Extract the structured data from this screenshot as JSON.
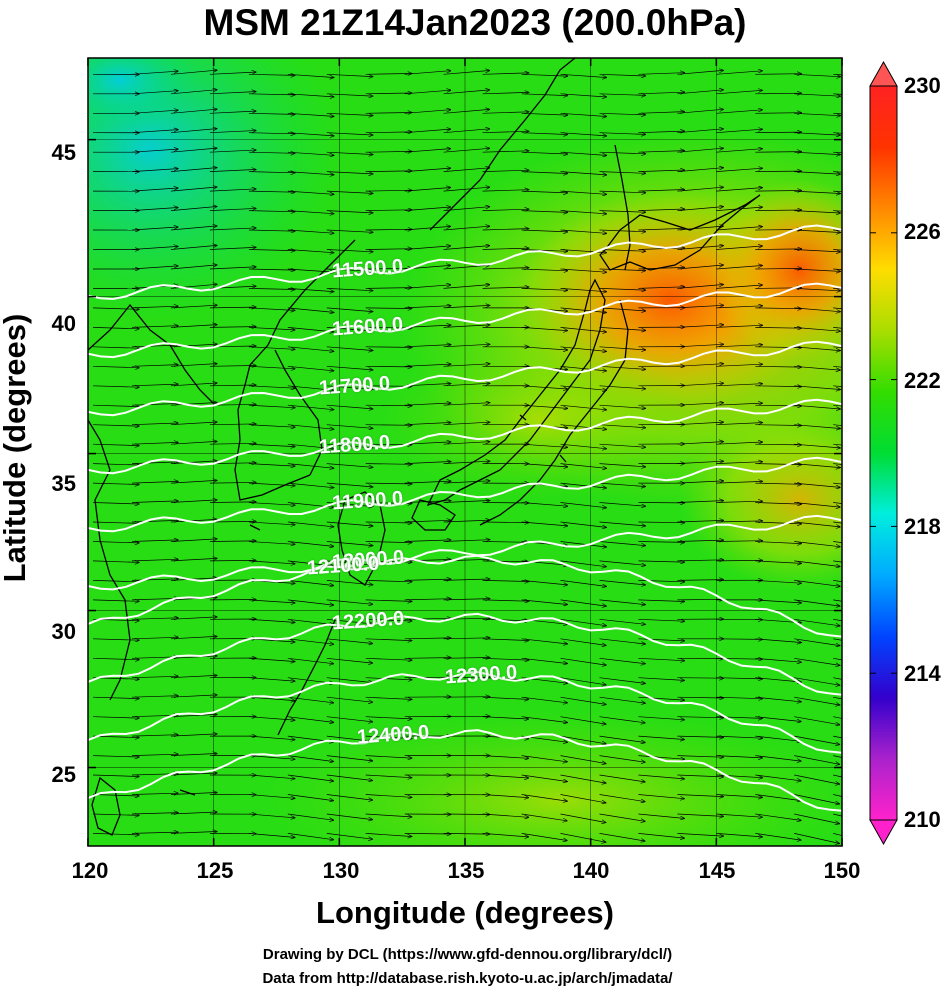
{
  "title": "MSM 21Z14Jan2023 (200.0hPa)",
  "x_axis": {
    "label": "Longitude (degrees)",
    "ticks": [
      "120",
      "125",
      "130",
      "135",
      "140",
      "145",
      "150"
    ],
    "range": [
      120,
      150
    ]
  },
  "y_axis": {
    "label": "Latitude  (degrees)",
    "ticks": [
      "25",
      "30",
      "35",
      "40",
      "45"
    ],
    "range": [
      22.5,
      47.6
    ]
  },
  "colorbar": {
    "ticks": [
      "230",
      "226",
      "222",
      "218",
      "214",
      "210"
    ],
    "range": [
      210,
      230
    ],
    "colors": [
      "#ff22cc",
      "#aa22cc",
      "#3300cc",
      "#0044ff",
      "#00aaff",
      "#00eedd",
      "#00dd33",
      "#33dd00",
      "#aadd00",
      "#ffdd00",
      "#ff8800",
      "#ff3300",
      "#ff2222"
    ]
  },
  "contours": [
    {
      "label": "11500.0",
      "value": 11500
    },
    {
      "label": "11600.0",
      "value": 11600
    },
    {
      "label": "11700.0",
      "value": 11700
    },
    {
      "label": "11800.0",
      "value": 11800
    },
    {
      "label": "11900.0",
      "value": 11900
    },
    {
      "label": "12000.0",
      "value": 12000
    },
    {
      "label": "12100.0",
      "value": 12100
    },
    {
      "label": "12200.0",
      "value": 12200
    },
    {
      "label": "12300.0",
      "value": 12300
    },
    {
      "label": "12400.0",
      "value": 12400
    }
  ],
  "credits": {
    "line1": "Drawing by DCL (https://www.gfd-dennou.org/library/dcl/)",
    "line2": "Data from http://database.rish.kyoto-u.ac.jp/arch/jmadata/"
  }
}
